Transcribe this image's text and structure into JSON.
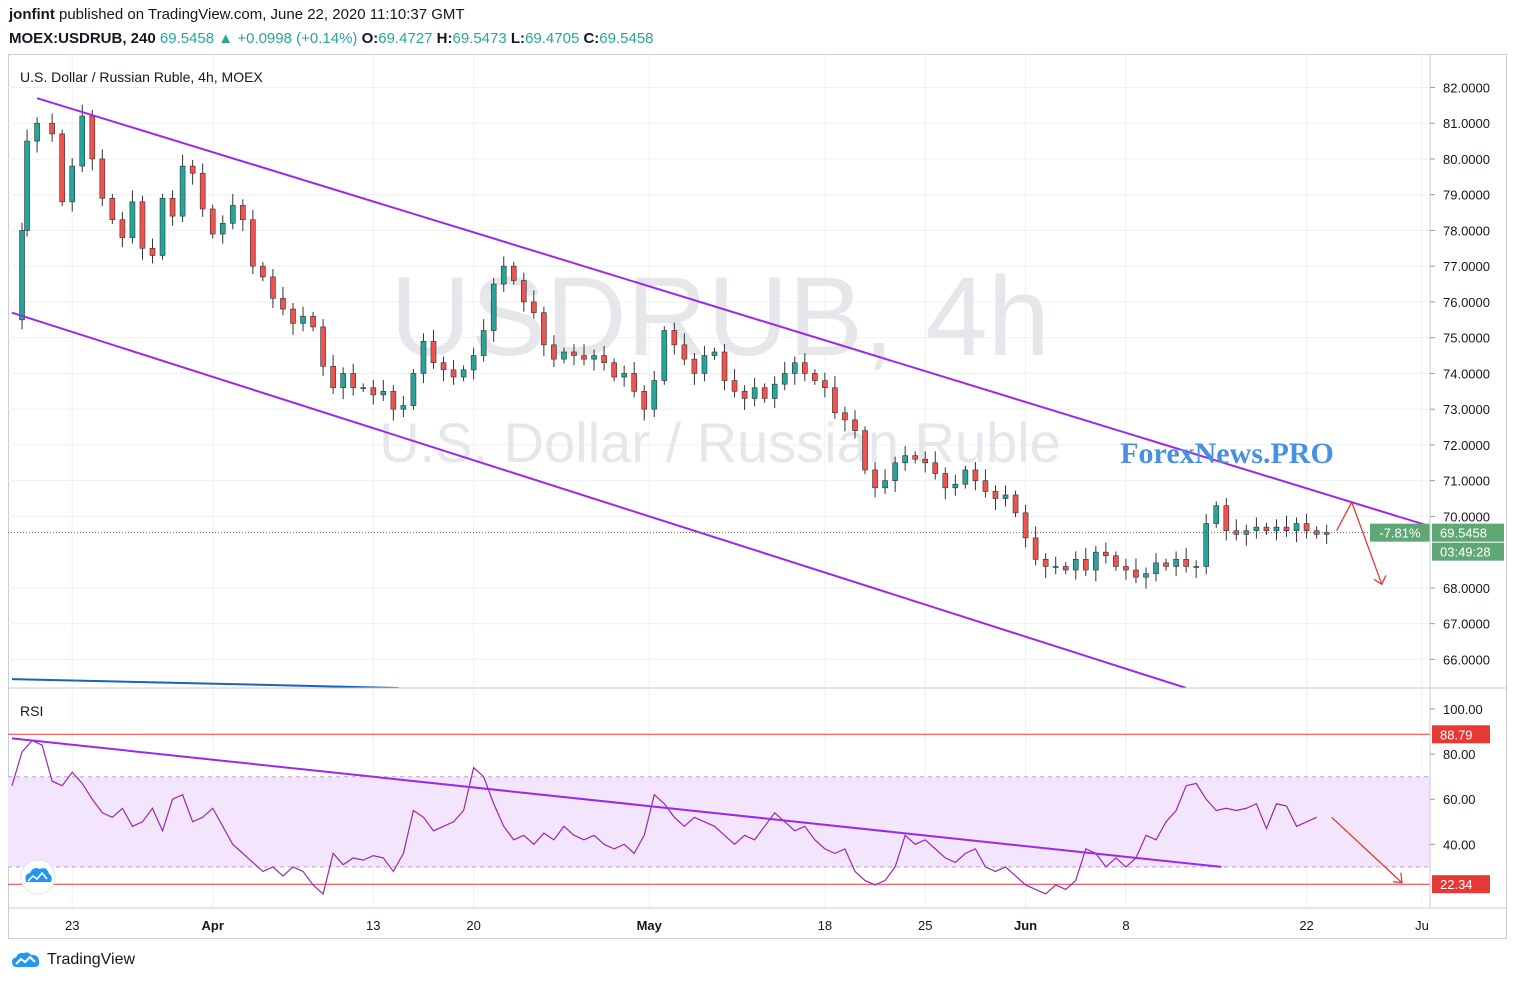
{
  "header": {
    "author": "jonfint",
    "published_text": "published on TradingView.com, June 22, 2020 11:10:37 GMT",
    "symbol": "MOEX:USDRUB, 240",
    "last": "69.5458",
    "change": "+0.0998 (+0.14%)",
    "o_label": "O:",
    "o_value": "69.4727",
    "h_label": "H:",
    "h_value": "69.5473",
    "l_label": "L:",
    "l_value": "69.4705",
    "c_label": "C:",
    "c_value": "69.5458"
  },
  "colors": {
    "up": "#26a69a",
    "down": "#ef5350",
    "channel": "#9c27f0",
    "rsi_line": "#9c27b0",
    "rsi_band": "#f3e5fb",
    "level_line": "#e53935",
    "arrow": "#e53935",
    "watermark": "#e6e7ea",
    "brand": "#4a90e2",
    "blue_trend": "#1565c0",
    "price_label": "#5fa876"
  },
  "footer": {
    "brand": "TradingView"
  },
  "chart_data": {
    "type": "candlestick",
    "title": "U.S. Dollar / Russian Ruble, 4h, MOEX",
    "watermark_symbol": "USDRUB, 4h",
    "watermark_name": "U.S. Dollar / Russian Ruble",
    "brand_overlay": "ForexNews.PRO",
    "price_axis": {
      "ylim": [
        65.2,
        82.6
      ],
      "ticks": [
        "82.0000",
        "81.0000",
        "80.0000",
        "79.0000",
        "78.0000",
        "77.0000",
        "76.0000",
        "75.0000",
        "74.0000",
        "73.0000",
        "72.0000",
        "71.0000",
        "70.0000",
        "68.0000",
        "67.0000",
        "66.0000"
      ],
      "tick_values": [
        82,
        81,
        80,
        79,
        78,
        77,
        76,
        75,
        74,
        73,
        72,
        71,
        70,
        68,
        67,
        66
      ]
    },
    "x_axis": {
      "labels": [
        {
          "text": "23",
          "t": 12
        },
        {
          "text": "Apr",
          "t": 40
        },
        {
          "text": "13",
          "t": 72
        },
        {
          "text": "20",
          "t": 92
        },
        {
          "text": "May",
          "t": 127
        },
        {
          "text": "18",
          "t": 162
        },
        {
          "text": "25",
          "t": 182
        },
        {
          "text": "Jun",
          "t": 202
        },
        {
          "text": "8",
          "t": 222
        },
        {
          "text": "22",
          "t": 258
        },
        {
          "text": "Ju",
          "t": 281
        }
      ],
      "bold": [
        "Apr",
        "May",
        "Jun"
      ],
      "t_range": [
        0,
        282
      ]
    },
    "last_price": {
      "value": 69.5458,
      "label": "69.5458",
      "pct_label": "-7.81%",
      "countdown": "03:49:28"
    },
    "price_series": [
      [
        0,
        75.5
      ],
      [
        2,
        78.0
      ],
      [
        3,
        80.5
      ],
      [
        5,
        81.0
      ],
      [
        8,
        80.7
      ],
      [
        10,
        78.8
      ],
      [
        12,
        79.8
      ],
      [
        14,
        81.2
      ],
      [
        16,
        80.0
      ],
      [
        18,
        78.9
      ],
      [
        20,
        78.3
      ],
      [
        22,
        77.8
      ],
      [
        24,
        78.8
      ],
      [
        26,
        77.5
      ],
      [
        28,
        77.3
      ],
      [
        30,
        78.9
      ],
      [
        32,
        78.4
      ],
      [
        34,
        79.8
      ],
      [
        36,
        79.6
      ],
      [
        38,
        78.6
      ],
      [
        40,
        77.9
      ],
      [
        42,
        78.2
      ],
      [
        44,
        78.7
      ],
      [
        46,
        78.3
      ],
      [
        48,
        77.0
      ],
      [
        50,
        76.7
      ],
      [
        52,
        76.1
      ],
      [
        54,
        75.8
      ],
      [
        56,
        75.4
      ],
      [
        58,
        75.6
      ],
      [
        60,
        75.3
      ],
      [
        62,
        74.2
      ],
      [
        64,
        73.6
      ],
      [
        66,
        74.0
      ],
      [
        68,
        73.6
      ],
      [
        70,
        73.6
      ],
      [
        72,
        73.4
      ],
      [
        74,
        73.5
      ],
      [
        76,
        73.0
      ],
      [
        78,
        73.1
      ],
      [
        80,
        74.0
      ],
      [
        82,
        74.9
      ],
      [
        84,
        74.3
      ],
      [
        86,
        74.1
      ],
      [
        88,
        73.9
      ],
      [
        90,
        74.1
      ],
      [
        92,
        74.5
      ],
      [
        94,
        75.2
      ],
      [
        96,
        76.5
      ],
      [
        98,
        77.0
      ],
      [
        100,
        76.6
      ],
      [
        102,
        76.0
      ],
      [
        104,
        75.7
      ],
      [
        106,
        74.8
      ],
      [
        108,
        74.4
      ],
      [
        110,
        74.6
      ],
      [
        112,
        74.5
      ],
      [
        114,
        74.4
      ],
      [
        116,
        74.5
      ],
      [
        118,
        74.3
      ],
      [
        120,
        73.9
      ],
      [
        122,
        74.0
      ],
      [
        124,
        73.5
      ],
      [
        126,
        73.0
      ],
      [
        128,
        73.8
      ],
      [
        130,
        75.2
      ],
      [
        132,
        74.8
      ],
      [
        134,
        74.4
      ],
      [
        136,
        74.0
      ],
      [
        138,
        74.5
      ],
      [
        140,
        74.6
      ],
      [
        142,
        73.8
      ],
      [
        144,
        73.5
      ],
      [
        146,
        73.3
      ],
      [
        148,
        73.6
      ],
      [
        150,
        73.3
      ],
      [
        152,
        73.7
      ],
      [
        154,
        74.0
      ],
      [
        156,
        74.3
      ],
      [
        158,
        74.0
      ],
      [
        160,
        73.8
      ],
      [
        162,
        73.6
      ],
      [
        164,
        72.9
      ],
      [
        166,
        72.7
      ],
      [
        168,
        72.4
      ],
      [
        170,
        71.3
      ],
      [
        172,
        70.8
      ],
      [
        174,
        71.0
      ],
      [
        176,
        71.5
      ],
      [
        178,
        71.7
      ],
      [
        180,
        71.6
      ],
      [
        182,
        71.5
      ],
      [
        184,
        71.2
      ],
      [
        186,
        70.8
      ],
      [
        188,
        70.9
      ],
      [
        190,
        71.3
      ],
      [
        192,
        71.0
      ],
      [
        194,
        70.7
      ],
      [
        196,
        70.5
      ],
      [
        198,
        70.6
      ],
      [
        200,
        70.1
      ],
      [
        202,
        69.4
      ],
      [
        204,
        68.8
      ],
      [
        206,
        68.6
      ],
      [
        208,
        68.6
      ],
      [
        210,
        68.5
      ],
      [
        212,
        68.8
      ],
      [
        214,
        68.5
      ],
      [
        216,
        69.0
      ],
      [
        218,
        68.9
      ],
      [
        220,
        68.6
      ],
      [
        222,
        68.5
      ],
      [
        224,
        68.3
      ],
      [
        226,
        68.4
      ],
      [
        228,
        68.7
      ],
      [
        230,
        68.6
      ],
      [
        232,
        68.8
      ],
      [
        234,
        68.6
      ],
      [
        236,
        68.6
      ],
      [
        238,
        69.8
      ],
      [
        240,
        70.3
      ],
      [
        242,
        69.6
      ],
      [
        244,
        69.5
      ],
      [
        246,
        69.6
      ],
      [
        248,
        69.7
      ],
      [
        250,
        69.6
      ],
      [
        252,
        69.7
      ],
      [
        254,
        69.6
      ],
      [
        256,
        69.8
      ],
      [
        258,
        69.6
      ],
      [
        260,
        69.5
      ],
      [
        262,
        69.55
      ]
    ],
    "forecast_path": [
      [
        264,
        69.6
      ],
      [
        267,
        70.4
      ],
      [
        273,
        68.1
      ]
    ],
    "channel_upper": [
      [
        5,
        81.7
      ],
      [
        282,
        69.75
      ]
    ],
    "channel_lower": [
      [
        0,
        75.7
      ],
      [
        234,
        65.2
      ]
    ],
    "blue_line": [
      [
        0,
        65.45
      ],
      [
        77,
        65.2
      ]
    ],
    "rsi": {
      "label": "RSI",
      "ylim": [
        14,
        104
      ],
      "ticks": [
        "100.00",
        "80.00",
        "60.00",
        "40.00"
      ],
      "tick_values": [
        100,
        80,
        60,
        40
      ],
      "upper_band": 70,
      "lower_band": 30,
      "level_high": 88.79,
      "level_high_label": "88.79",
      "level_low": 22.34,
      "level_low_label": "22.34",
      "values": [
        [
          0,
          66
        ],
        [
          2,
          81
        ],
        [
          4,
          86
        ],
        [
          6,
          84
        ],
        [
          8,
          68
        ],
        [
          10,
          66
        ],
        [
          12,
          72
        ],
        [
          14,
          67
        ],
        [
          16,
          60
        ],
        [
          18,
          54
        ],
        [
          20,
          52
        ],
        [
          22,
          56
        ],
        [
          24,
          48
        ],
        [
          26,
          50
        ],
        [
          28,
          56
        ],
        [
          30,
          46
        ],
        [
          32,
          60
        ],
        [
          34,
          62
        ],
        [
          36,
          50
        ],
        [
          38,
          52
        ],
        [
          40,
          56
        ],
        [
          42,
          48
        ],
        [
          44,
          40
        ],
        [
          46,
          36
        ],
        [
          48,
          32
        ],
        [
          50,
          28
        ],
        [
          52,
          30
        ],
        [
          54,
          26
        ],
        [
          56,
          30
        ],
        [
          58,
          28
        ],
        [
          60,
          22
        ],
        [
          62,
          18
        ],
        [
          64,
          36
        ],
        [
          66,
          31
        ],
        [
          68,
          34
        ],
        [
          70,
          33
        ],
        [
          72,
          35
        ],
        [
          74,
          34
        ],
        [
          76,
          28
        ],
        [
          78,
          36
        ],
        [
          80,
          55
        ],
        [
          82,
          52
        ],
        [
          84,
          46
        ],
        [
          86,
          48
        ],
        [
          88,
          50
        ],
        [
          90,
          55
        ],
        [
          92,
          74
        ],
        [
          94,
          70
        ],
        [
          96,
          58
        ],
        [
          98,
          48
        ],
        [
          100,
          42
        ],
        [
          102,
          44
        ],
        [
          104,
          40
        ],
        [
          106,
          45
        ],
        [
          108,
          42
        ],
        [
          110,
          48
        ],
        [
          112,
          44
        ],
        [
          114,
          42
        ],
        [
          116,
          44
        ],
        [
          118,
          40
        ],
        [
          120,
          38
        ],
        [
          122,
          40
        ],
        [
          124,
          36
        ],
        [
          126,
          44
        ],
        [
          128,
          62
        ],
        [
          130,
          58
        ],
        [
          132,
          52
        ],
        [
          134,
          48
        ],
        [
          136,
          52
        ],
        [
          138,
          50
        ],
        [
          140,
          48
        ],
        [
          142,
          44
        ],
        [
          144,
          40
        ],
        [
          146,
          44
        ],
        [
          148,
          42
        ],
        [
          150,
          48
        ],
        [
          152,
          54
        ],
        [
          154,
          50
        ],
        [
          156,
          46
        ],
        [
          158,
          48
        ],
        [
          160,
          42
        ],
        [
          162,
          38
        ],
        [
          164,
          36
        ],
        [
          166,
          38
        ],
        [
          168,
          28
        ],
        [
          170,
          24
        ],
        [
          172,
          22
        ],
        [
          174,
          24
        ],
        [
          176,
          30
        ],
        [
          178,
          44
        ],
        [
          180,
          40
        ],
        [
          182,
          42
        ],
        [
          184,
          38
        ],
        [
          186,
          34
        ],
        [
          188,
          32
        ],
        [
          190,
          36
        ],
        [
          192,
          38
        ],
        [
          194,
          30
        ],
        [
          196,
          28
        ],
        [
          198,
          30
        ],
        [
          200,
          26
        ],
        [
          202,
          22
        ],
        [
          204,
          20
        ],
        [
          206,
          18
        ],
        [
          208,
          22
        ],
        [
          210,
          20
        ],
        [
          212,
          24
        ],
        [
          214,
          38
        ],
        [
          216,
          36
        ],
        [
          218,
          30
        ],
        [
          220,
          34
        ],
        [
          222,
          30
        ],
        [
          224,
          34
        ],
        [
          226,
          44
        ],
        [
          228,
          42
        ],
        [
          230,
          50
        ],
        [
          232,
          55
        ],
        [
          234,
          66
        ],
        [
          236,
          67
        ],
        [
          238,
          60
        ],
        [
          240,
          55
        ],
        [
          242,
          56
        ],
        [
          244,
          55
        ],
        [
          246,
          56
        ],
        [
          248,
          58
        ],
        [
          250,
          47
        ],
        [
          252,
          58
        ],
        [
          254,
          57
        ],
        [
          256,
          48
        ],
        [
          258,
          50
        ],
        [
          260,
          52
        ]
      ],
      "trend_line": [
        [
          0,
          87
        ],
        [
          241,
          30
        ]
      ],
      "forecast_path": [
        [
          263,
          52
        ],
        [
          277,
          23
        ]
      ]
    }
  }
}
